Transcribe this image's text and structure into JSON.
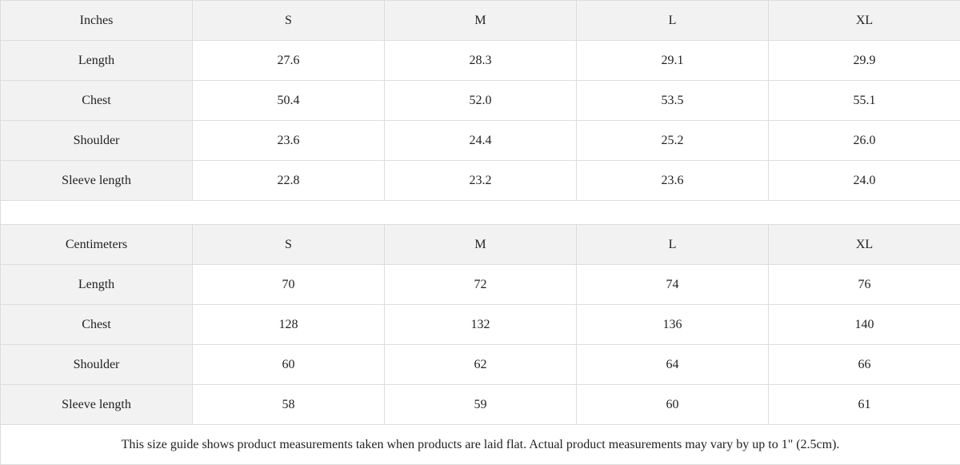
{
  "inches": {
    "header": [
      "Inches",
      "S",
      "M",
      "L",
      "XL"
    ],
    "rows": [
      {
        "label": "Length",
        "values": [
          "27.6",
          "28.3",
          "29.1",
          "29.9"
        ]
      },
      {
        "label": "Chest",
        "values": [
          "50.4",
          "52.0",
          "53.5",
          "55.1"
        ]
      },
      {
        "label": "Shoulder",
        "values": [
          "23.6",
          "24.4",
          "25.2",
          "26.0"
        ]
      },
      {
        "label": "Sleeve length",
        "values": [
          "22.8",
          "23.2",
          "23.6",
          "24.0"
        ]
      }
    ]
  },
  "centimeters": {
    "header": [
      "Centimeters",
      "S",
      "M",
      "L",
      "XL"
    ],
    "rows": [
      {
        "label": "Length",
        "values": [
          "70",
          "72",
          "74",
          "76"
        ]
      },
      {
        "label": "Chest",
        "values": [
          "128",
          "132",
          "136",
          "140"
        ]
      },
      {
        "label": "Shoulder",
        "values": [
          "60",
          "62",
          "64",
          "66"
        ]
      },
      {
        "label": "Sleeve length",
        "values": [
          "58",
          "59",
          "60",
          "61"
        ]
      }
    ]
  },
  "note": "This size guide shows product measurements taken when products are laid flat.  Actual product measurements may vary by up to 1\" (2.5cm).",
  "colors": {
    "header_bg": "#f2f2f2",
    "border": "#dddddd"
  }
}
